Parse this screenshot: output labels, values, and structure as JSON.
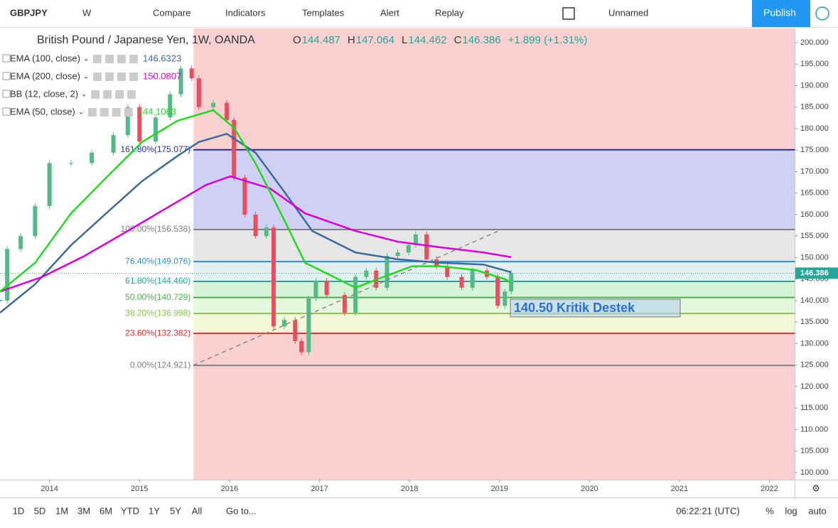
{
  "toolbar": {
    "symbol": "GBPJPY",
    "interval": "W",
    "buttons": [
      "Compare",
      "Indicators",
      "Templates",
      "Alert",
      "Replay"
    ],
    "layout_name": "Unnamed",
    "publish": "Publish"
  },
  "header": {
    "title": "British Pound / Japanese Yen, 1W, OANDA",
    "ohlc": [
      {
        "label": "O",
        "value": "144.487"
      },
      {
        "label": "H",
        "value": "147.064"
      },
      {
        "label": "L",
        "value": "144.462"
      },
      {
        "label": "C",
        "value": "146.386"
      }
    ],
    "change": "+1.899 (+1.31%)"
  },
  "chart_data": {
    "type": "candlestick",
    "xlim": [
      2013.45,
      2022.28
    ],
    "xticks": [
      2014,
      2015,
      2016,
      2017,
      2018,
      2019,
      2020,
      2021,
      2022
    ],
    "ylim": [
      98.35,
      203.31
    ],
    "yticks": [
      {
        "value": 100,
        "label": "100.000"
      },
      {
        "value": 105,
        "label": "105.000"
      },
      {
        "value": 110,
        "label": "110.000"
      },
      {
        "value": 115,
        "label": "115.000"
      },
      {
        "value": 120,
        "label": "120.000"
      },
      {
        "value": 125,
        "label": "125.000"
      },
      {
        "value": 130,
        "label": "130.000"
      },
      {
        "value": 135,
        "label": "135.000"
      },
      {
        "value": 140,
        "label": "140.000"
      },
      {
        "value": 145,
        "label": "145.000"
      },
      {
        "value": 150,
        "label": "150.000"
      },
      {
        "value": 155,
        "label": "155.000"
      },
      {
        "value": 160,
        "label": "160.000"
      },
      {
        "value": 165,
        "label": "165.000"
      },
      {
        "value": 170,
        "label": "170.000"
      },
      {
        "value": 175,
        "label": "175.000"
      },
      {
        "value": 180,
        "label": "180.000"
      },
      {
        "value": 185,
        "label": "185.000"
      },
      {
        "value": 190,
        "label": "190.000"
      },
      {
        "value": 195,
        "label": "195.000"
      },
      {
        "value": 200,
        "label": "200.000"
      }
    ],
    "price": {
      "up_color": "#53b987",
      "down_color": "#eb4d5c",
      "x": [
        2013.45,
        2013.53,
        2013.68,
        2013.84,
        2014.0,
        2014.24,
        2014.47,
        2014.71,
        2014.87,
        2015.0,
        2015.18,
        2015.34,
        2015.46,
        2015.58,
        2015.66,
        2015.82,
        2015.97,
        2016.05,
        2016.17,
        2016.29,
        2016.41,
        2016.49,
        2016.61,
        2016.73,
        2016.8,
        2016.88,
        2016.96,
        2017.08,
        2017.28,
        2017.4,
        2017.52,
        2017.63,
        2017.75,
        2017.87,
        2017.99,
        2018.07,
        2018.19,
        2018.3,
        2018.42,
        2018.58,
        2018.7,
        2018.86,
        2018.98,
        2019.06,
        2019.13
      ],
      "values": [
        140,
        152,
        155,
        162,
        172,
        172,
        174.4,
        178.5,
        185,
        177,
        182.6,
        188,
        194,
        191.7,
        185,
        186,
        182,
        168.6,
        160,
        155,
        157,
        134,
        135.5,
        130.6,
        128,
        140.5,
        144.6,
        141.3,
        137.2,
        145.5,
        147,
        143,
        150.4,
        151.2,
        152.9,
        155.4,
        149.6,
        148,
        145.5,
        143,
        147,
        145.5,
        138.8,
        142.1,
        146.4
      ]
    },
    "last_price": 146.386,
    "series": [
      {
        "name": "EMA (100, close)",
        "color": "#3d6a9a",
        "value_label": "146.6323",
        "x": [
          2013.45,
          2013.84,
          2014.24,
          2014.63,
          2015.03,
          2015.42,
          2015.66,
          2015.97,
          2016.29,
          2016.61,
          2016.92,
          2017.4,
          2017.87,
          2018.34,
          2018.82,
          2019.13
        ],
        "values": [
          137.2,
          143.8,
          152.9,
          160.3,
          167.8,
          173.6,
          176.9,
          178.8,
          174.4,
          165.3,
          156.2,
          151.2,
          149.6,
          148.8,
          148.4,
          146.6
        ]
      },
      {
        "name": "EMA (200, close)",
        "color": "#d500d5",
        "value_label": "150.0807",
        "x": [
          2013.45,
          2013.92,
          2014.39,
          2014.87,
          2015.34,
          2015.74,
          2016.01,
          2016.45,
          2016.84,
          2017.4,
          2017.87,
          2018.34,
          2018.82,
          2019.13
        ],
        "values": [
          142.1,
          145.5,
          150.4,
          156.2,
          162,
          166.9,
          168.9,
          166.1,
          160.3,
          156.2,
          153.7,
          152.4,
          151.2,
          150.1
        ]
      },
      {
        "name": "EMA (50, close)",
        "color": "#22d822",
        "value_label": "144.1063",
        "x": [
          2013.45,
          2013.84,
          2014.24,
          2014.63,
          2015.03,
          2015.42,
          2015.82,
          2016.05,
          2016.29,
          2016.61,
          2016.84,
          2017.16,
          2017.4,
          2017.71,
          2018.03,
          2018.34,
          2018.74,
          2019.06,
          2019.13
        ],
        "values": [
          142.1,
          148.8,
          160.3,
          168.6,
          176.9,
          181.8,
          184.3,
          180.2,
          171.9,
          158.7,
          148.8,
          145.5,
          143,
          145.5,
          148,
          148,
          147.1,
          145,
          144.1
        ]
      }
    ],
    "legend_extra": "BB (12, close, 2)",
    "fib": {
      "start_x": 2015.6,
      "above_fill": "rgba(240,120,120,0.35)",
      "levels": [
        {
          "value": 175.077,
          "label": "161.80%(175.077)",
          "color": "#2a2aa8",
          "fill": "rgba(120,120,230,0.35)"
        },
        {
          "value": 156.538,
          "label": "100.00%(156.538)",
          "color": "#808080",
          "fill": "rgba(200,200,200,0.45)"
        },
        {
          "value": 149.076,
          "label": "76.40%(149.076)",
          "color": "#2f8fd0",
          "fill": "rgba(170,210,210,0.35)"
        },
        {
          "value": 144.46,
          "label": "61.80%(144.460)",
          "color": "#26a69a",
          "fill": "rgba(140,220,140,0.35)"
        },
        {
          "value": 140.729,
          "label": "50.00%(140.729)",
          "color": "#4caf50",
          "fill": "rgba(180,235,160,0.35)"
        },
        {
          "value": 136.998,
          "label": "38.20%(136.998)",
          "color": "#8bc34a",
          "fill": "rgba(230,240,170,0.45)"
        },
        {
          "value": 132.382,
          "label": "23.60%(132.382)",
          "color": "#d32f2f",
          "fill": "rgba(240,120,120,0.35)"
        },
        {
          "value": 124.921,
          "label": "0.00%(124.921)",
          "color": "#808080",
          "fill": "rgba(240,120,120,0.35)"
        }
      ]
    },
    "annotation": "140.50 Kritik Destek"
  },
  "bottom_bar": {
    "ranges": [
      "1D",
      "5D",
      "1M",
      "3M",
      "6M",
      "YTD",
      "1Y",
      "5Y",
      "All"
    ],
    "goto": "Go to...",
    "time": "06:22:21 (UTC)",
    "scale_options": [
      "%",
      "log",
      "auto"
    ]
  }
}
